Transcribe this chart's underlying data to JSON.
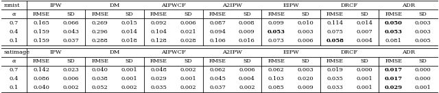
{
  "table1": {
    "dataset": "mnist",
    "methods": [
      "IPW",
      "DM",
      "AIPWCF",
      "A2IPW",
      "EIPW",
      "DRCF",
      "ADR"
    ],
    "alphas": [
      "0.7",
      "0.4",
      "0.1"
    ],
    "data": {
      "IPW": [
        [
          "0.165",
          "0.066"
        ],
        [
          "0.159",
          "0.043"
        ],
        [
          "0.159",
          "0.037"
        ]
      ],
      "DM": [
        [
          "0.269",
          "0.015"
        ],
        [
          "0.296",
          "0.014"
        ],
        [
          "0.288",
          "0.018"
        ]
      ],
      "AIPWCF": [
        [
          "0.092",
          "0.006"
        ],
        [
          "0.104",
          "0.021"
        ],
        [
          "0.128",
          "0.028"
        ]
      ],
      "A2IPW": [
        [
          "0.087",
          "0.008"
        ],
        [
          "0.094",
          "0.009"
        ],
        [
          "0.106",
          "0.016"
        ]
      ],
      "EIPW": [
        [
          "0.099",
          "0.010"
        ],
        [
          "0.053",
          "0.003"
        ],
        [
          "0.073",
          "0.006"
        ]
      ],
      "DRCF": [
        [
          "0.114",
          "0.014"
        ],
        [
          "0.075",
          "0.007"
        ],
        [
          "0.058",
          "0.004"
        ]
      ],
      "ADR": [
        [
          "0.050",
          "0.003"
        ],
        [
          "0.053",
          "0.003"
        ],
        [
          "0.081",
          "0.005"
        ]
      ]
    },
    "bold": {
      "IPW": [
        [
          false,
          false
        ],
        [
          false,
          false
        ],
        [
          false,
          false
        ]
      ],
      "DM": [
        [
          false,
          false
        ],
        [
          false,
          false
        ],
        [
          false,
          false
        ]
      ],
      "AIPWCF": [
        [
          false,
          false
        ],
        [
          false,
          false
        ],
        [
          false,
          false
        ]
      ],
      "A2IPW": [
        [
          false,
          false
        ],
        [
          false,
          false
        ],
        [
          false,
          false
        ]
      ],
      "EIPW": [
        [
          false,
          false
        ],
        [
          true,
          false
        ],
        [
          false,
          false
        ]
      ],
      "DRCF": [
        [
          false,
          false
        ],
        [
          false,
          false
        ],
        [
          true,
          false
        ]
      ],
      "ADR": [
        [
          true,
          false
        ],
        [
          true,
          false
        ],
        [
          false,
          false
        ]
      ]
    }
  },
  "table2": {
    "dataset": "satimage",
    "methods": [
      "IPW",
      "DM",
      "AIPWCF",
      "A2IPW",
      "EIPW",
      "DRCF",
      "ADR"
    ],
    "alphas": [
      "0.7",
      "0.4",
      "0.1"
    ],
    "data": {
      "IPW": [
        [
          "0.142",
          "0.023"
        ],
        [
          "0.086",
          "0.006"
        ],
        [
          "0.040",
          "0.002"
        ]
      ],
      "DM": [
        [
          "0.040",
          "0.001"
        ],
        [
          "0.038",
          "0.001"
        ],
        [
          "0.052",
          "0.002"
        ]
      ],
      "AIPWCF": [
        [
          "0.048",
          "0.002"
        ],
        [
          "0.029",
          "0.001"
        ],
        [
          "0.035",
          "0.002"
        ]
      ],
      "A2IPW": [
        [
          "0.062",
          "0.006"
        ],
        [
          "0.045",
          "0.004"
        ],
        [
          "0.037",
          "0.002"
        ]
      ],
      "EIPW": [
        [
          "0.062",
          "0.003"
        ],
        [
          "0.103",
          "0.020"
        ],
        [
          "0.085",
          "0.009"
        ]
      ],
      "DRCF": [
        [
          "0.019",
          "0.000"
        ],
        [
          "0.035",
          "0.001"
        ],
        [
          "0.033",
          "0.001"
        ]
      ],
      "ADR": [
        [
          "0.017",
          "0.000"
        ],
        [
          "0.017",
          "0.000"
        ],
        [
          "0.029",
          "0.001"
        ]
      ]
    },
    "bold": {
      "IPW": [
        [
          false,
          false
        ],
        [
          false,
          false
        ],
        [
          false,
          false
        ]
      ],
      "DM": [
        [
          false,
          false
        ],
        [
          false,
          false
        ],
        [
          false,
          false
        ]
      ],
      "AIPWCF": [
        [
          false,
          false
        ],
        [
          false,
          false
        ],
        [
          false,
          false
        ]
      ],
      "A2IPW": [
        [
          false,
          false
        ],
        [
          false,
          false
        ],
        [
          false,
          false
        ]
      ],
      "EIPW": [
        [
          false,
          false
        ],
        [
          false,
          false
        ],
        [
          false,
          false
        ]
      ],
      "DRCF": [
        [
          false,
          false
        ],
        [
          false,
          false
        ],
        [
          false,
          false
        ]
      ],
      "ADR": [
        [
          true,
          false
        ],
        [
          true,
          false
        ],
        [
          true,
          false
        ]
      ]
    }
  },
  "font_size": 6.0,
  "bg_color": "#ffffff",
  "line_color": "#000000",
  "figwidth": 6.4,
  "figheight": 1.37,
  "dpi": 100
}
